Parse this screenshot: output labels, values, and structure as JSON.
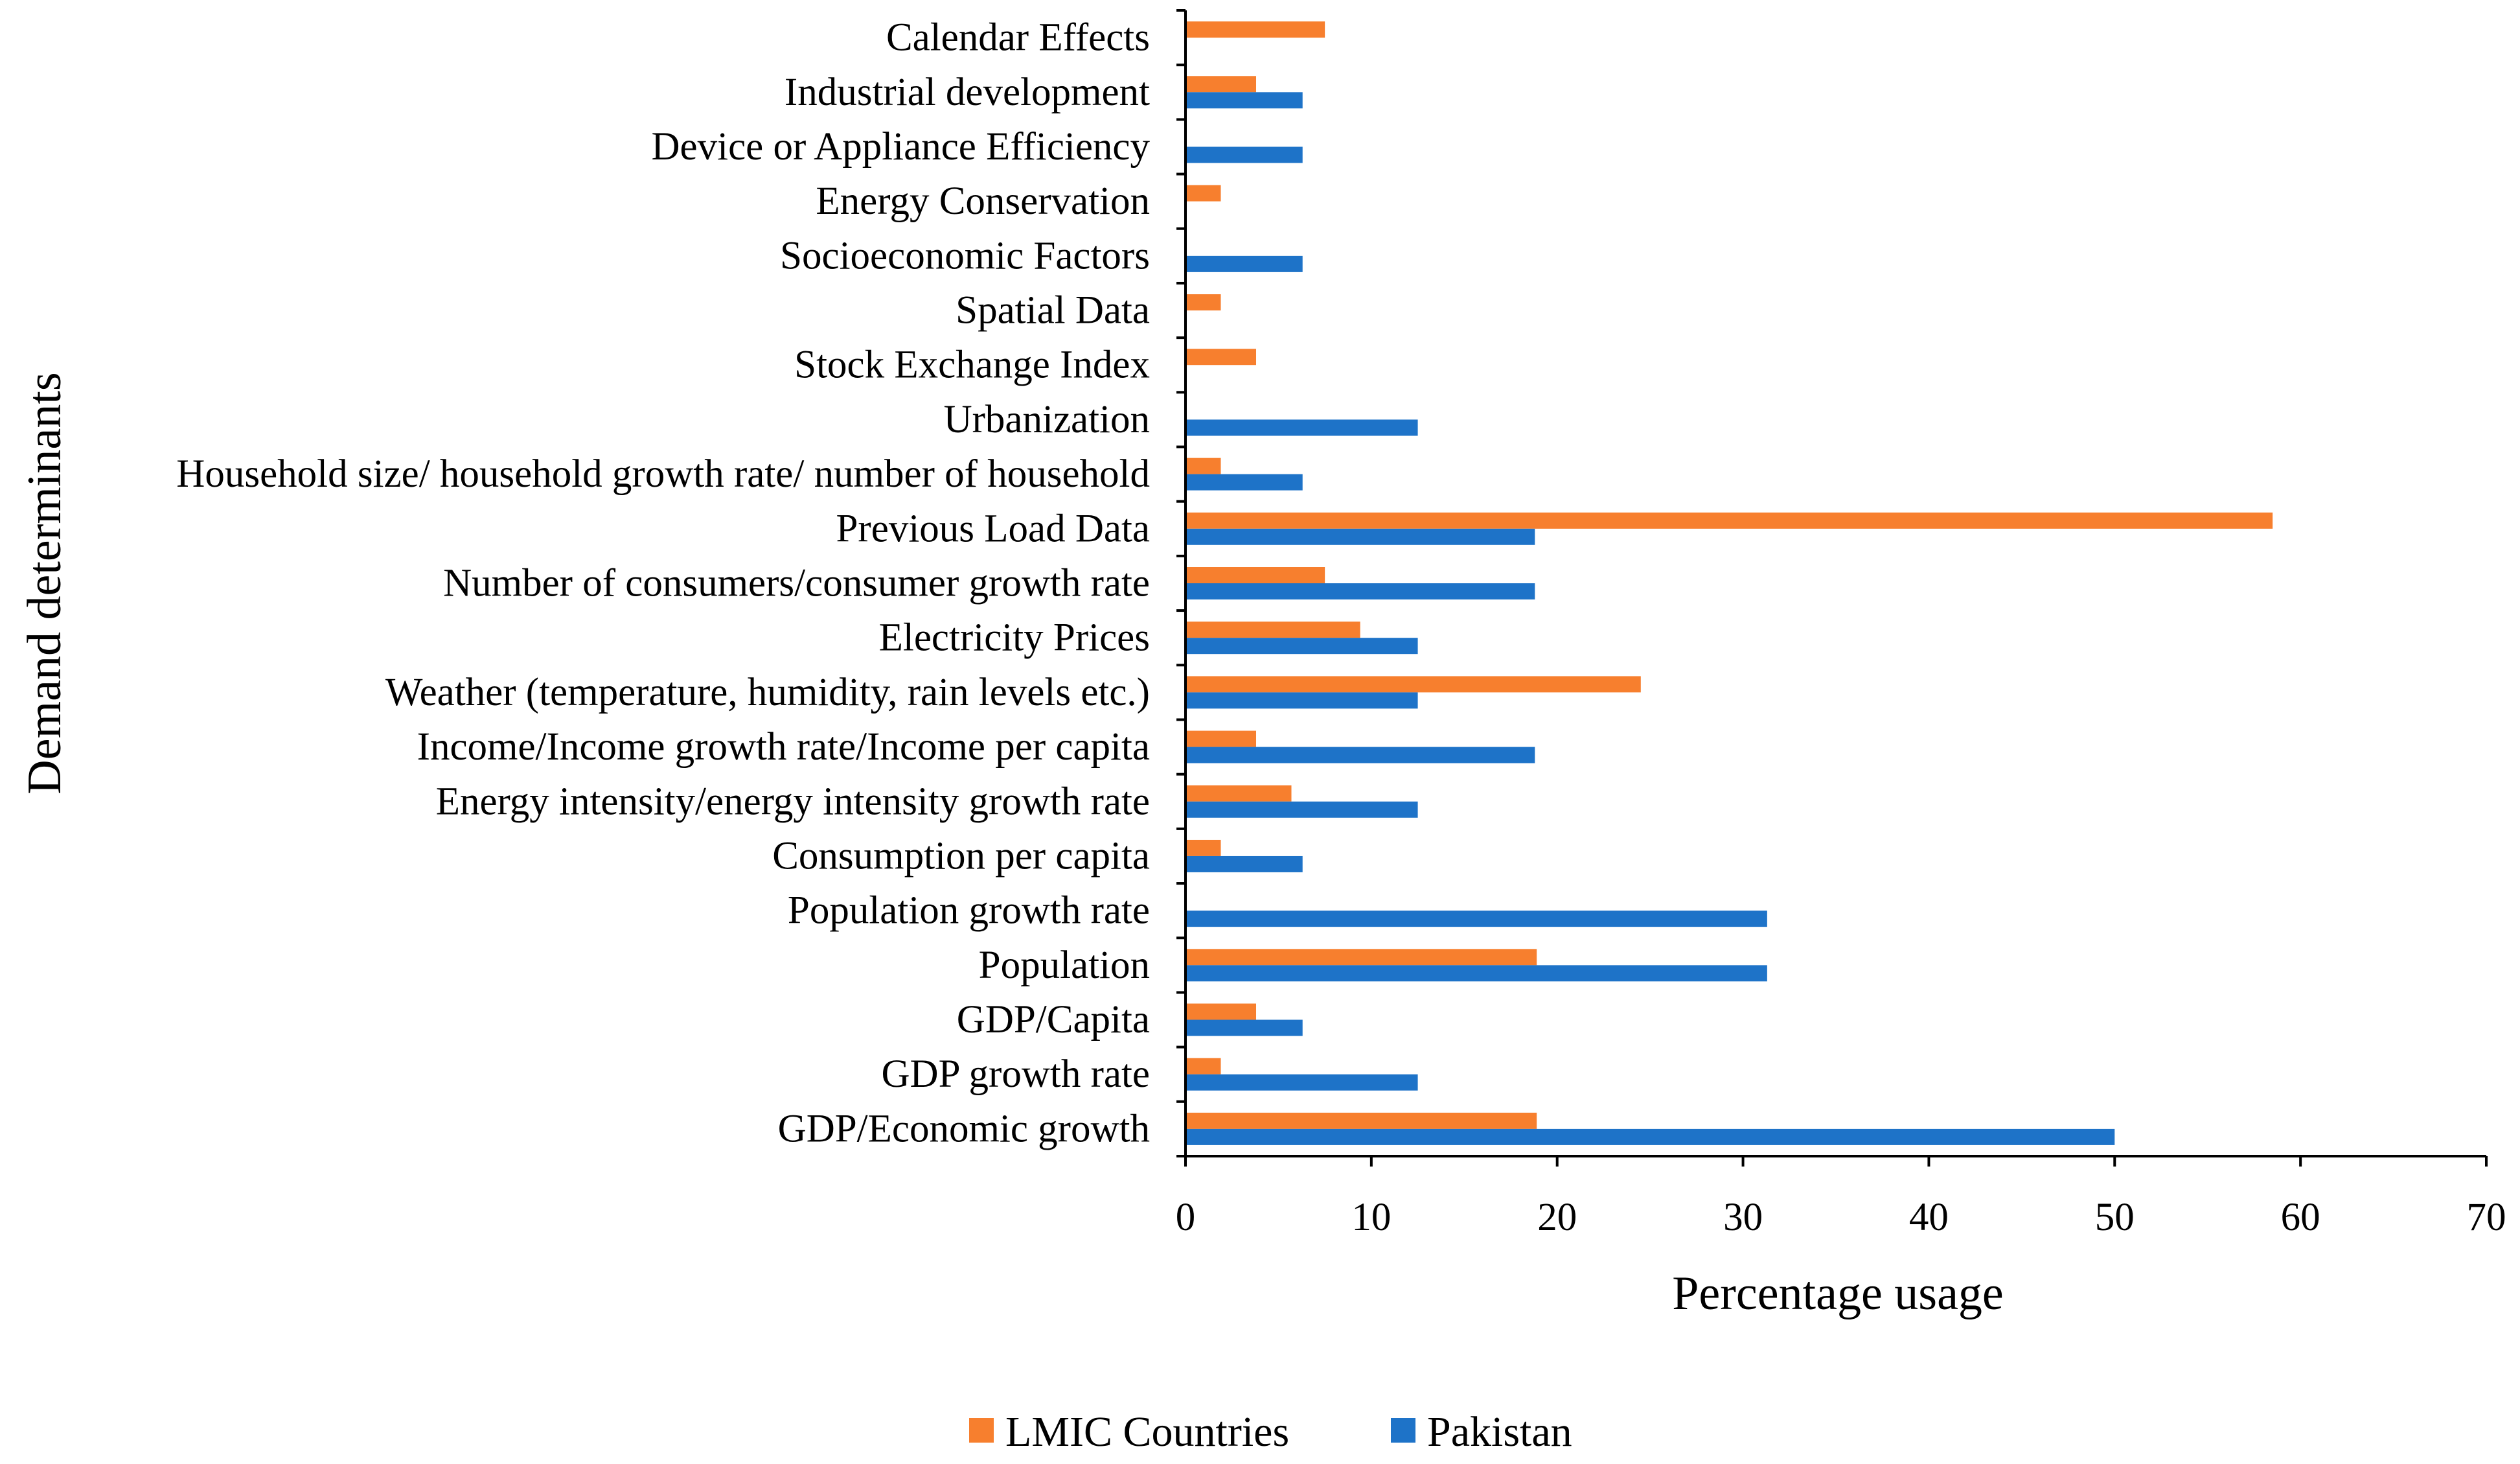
{
  "chart_data": {
    "type": "bar",
    "orientation": "horizontal",
    "title": "",
    "xlabel": "Percentage usage",
    "ylabel": "Demand determinants",
    "xlim": [
      0,
      70
    ],
    "xticks": [
      "0",
      "10",
      "20",
      "30",
      "40",
      "50",
      "60",
      "70"
    ],
    "categories": [
      "Calendar Effects",
      "Industrial development",
      "Device or Appliance Efficiency",
      "Energy Conservation",
      "Socioeconomic Factors",
      "Spatial Data",
      "Stock Exchange Index",
      "Urbanization",
      "Household size/ household growth rate/ number of household",
      "Previous Load Data",
      "Number of consumers/consumer growth rate",
      "Electricity Prices",
      "Weather (temperature, humidity, rain levels etc.)",
      "Income/Income growth rate/Income per capita",
      "Energy intensity/energy intensity growth rate",
      "Consumption per capita",
      "Population growth rate",
      "Population",
      "GDP/Capita",
      "GDP growth rate",
      "GDP/Economic growth"
    ],
    "series": [
      {
        "name": "LMIC Countries",
        "color": "#f77f2e",
        "values": [
          7.5,
          3.8,
          0,
          1.9,
          0,
          1.9,
          3.8,
          0,
          1.9,
          58.5,
          7.5,
          9.4,
          24.5,
          3.8,
          5.7,
          1.9,
          0,
          18.9,
          3.8,
          1.9,
          18.9
        ]
      },
      {
        "name": "Pakistan",
        "color": "#1e73c8",
        "values": [
          0,
          6.3,
          6.3,
          0,
          6.3,
          0,
          0,
          12.5,
          6.3,
          18.8,
          18.8,
          12.5,
          12.5,
          18.8,
          12.5,
          6.3,
          31.3,
          31.3,
          6.3,
          12.5,
          50
        ]
      }
    ],
    "legend_position": "bottom-center",
    "grid": false
  }
}
